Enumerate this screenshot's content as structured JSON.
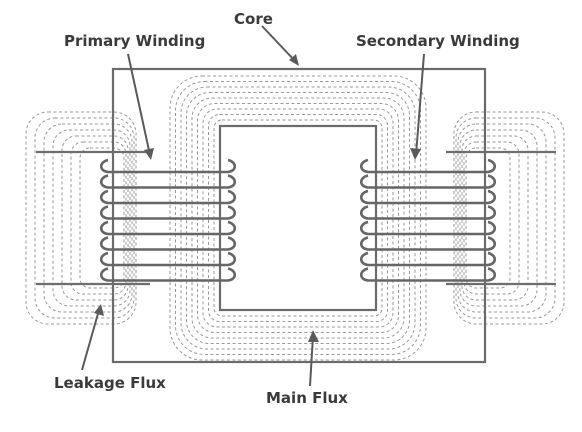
{
  "labels": {
    "core": "Core",
    "primary_winding": "Primary Winding",
    "secondary_winding": "Secondary Winding",
    "leakage_flux": "Leakage Flux",
    "main_flux": "Main Flux"
  },
  "windings": {
    "primary_turns": 8,
    "secondary_turns": 8
  },
  "colors": {
    "line": "#6b6b6b",
    "flux": "#9a9a9a",
    "text": "#3a3a3a"
  }
}
